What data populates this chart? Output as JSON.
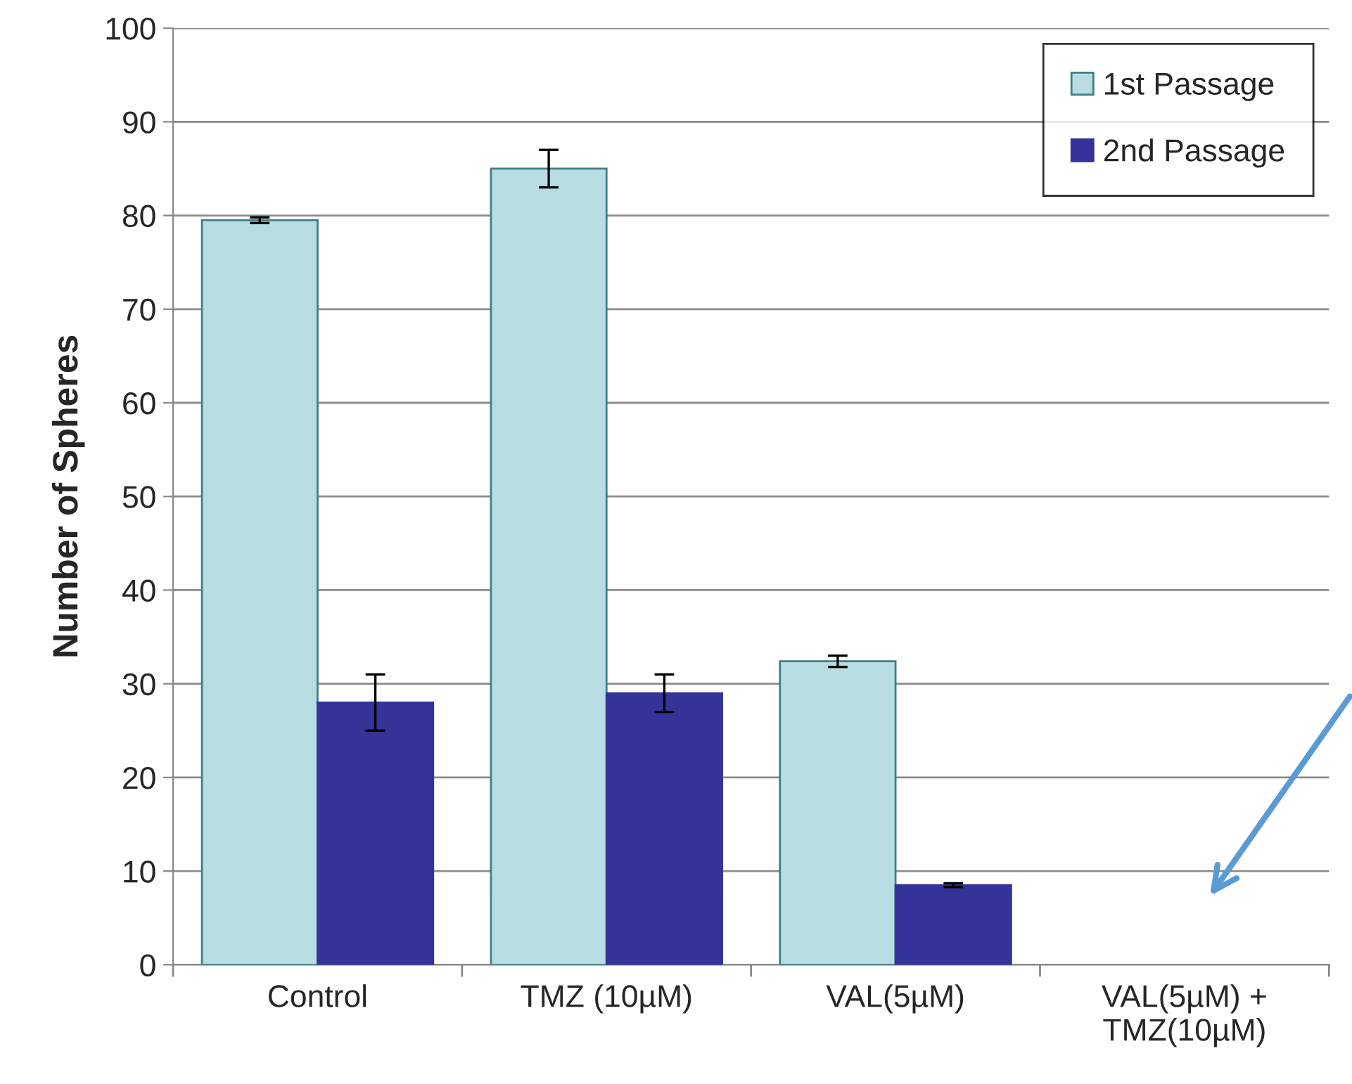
{
  "chart_data": {
    "type": "bar",
    "ylabel": "Number of Spheres",
    "categories": [
      "Control",
      "TMZ (10µM)",
      "VAL(5µM)",
      "VAL(5µM) +\nTMZ(10µM)"
    ],
    "series": [
      {
        "name": "1st Passage",
        "color": "#b7dde2",
        "values": [
          79.5,
          85,
          32.4,
          null
        ],
        "errors": [
          0.3,
          2,
          0.6,
          null
        ]
      },
      {
        "name": "2nd Passage",
        "color": "#333399",
        "values": [
          28,
          29,
          8.5,
          null
        ],
        "errors": [
          3,
          2,
          0.2,
          null
        ]
      }
    ],
    "ylim": [
      0,
      100
    ],
    "yticks": [
      0,
      10,
      20,
      30,
      40,
      50,
      60,
      70,
      80,
      90,
      100
    ],
    "grid": "y",
    "legend": "top right"
  }
}
